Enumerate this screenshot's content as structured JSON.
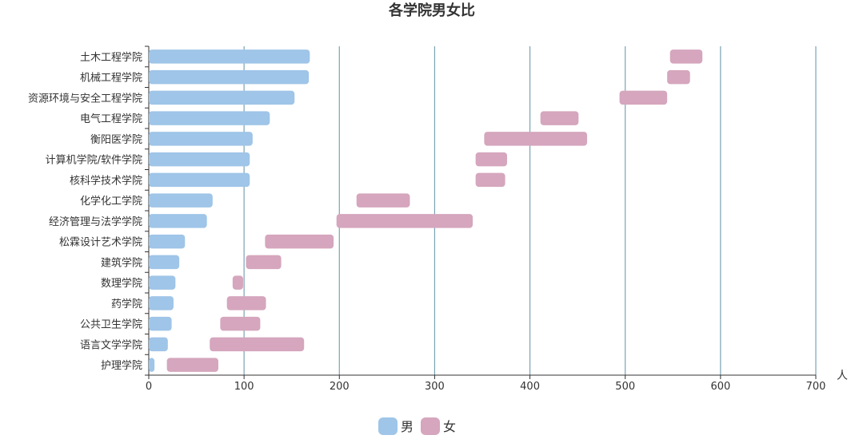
{
  "chart_data": {
    "type": "bar",
    "orientation": "horizontal",
    "layout": "stacked-with-gap",
    "title": "各学院男女比",
    "x_unit_label": "人",
    "xlim": [
      0,
      700
    ],
    "x_ticks": [
      "0",
      "100",
      "200",
      "300",
      "400",
      "500",
      "600",
      "700"
    ],
    "grid": "vertical",
    "legend_position": "bottom-center",
    "categories": [
      "土木工程学院",
      "机械工程学院",
      "资源环境与安全工程学院",
      "电气工程学院",
      "衡阳医学院",
      "计算机学院/软件学院",
      "核科学技术学院",
      "化学化工学院",
      "经济管理与法学学院",
      "松霖设计艺术学院",
      "建筑学院",
      "数理学院",
      "药学院",
      "公共卫生学院",
      "语言文学学院",
      "护理学院"
    ],
    "series": [
      {
        "name": "男",
        "color": "#9fc5e8",
        "values": [
          169,
          168,
          153,
          127,
          109,
          106,
          106,
          67,
          61,
          38,
          32,
          28,
          26,
          24,
          20,
          6
        ]
      },
      {
        "name": "女",
        "color": "#d5a6bd",
        "values": [
          34,
          24,
          50,
          40,
          108,
          33,
          31,
          56,
          143,
          72,
          37,
          11,
          41,
          42,
          99,
          54
        ]
      }
    ],
    "female_offsets": [
      547,
      544,
      494,
      411,
      352,
      343,
      343,
      218,
      197,
      122,
      102,
      88,
      82,
      75,
      64,
      19
    ]
  }
}
